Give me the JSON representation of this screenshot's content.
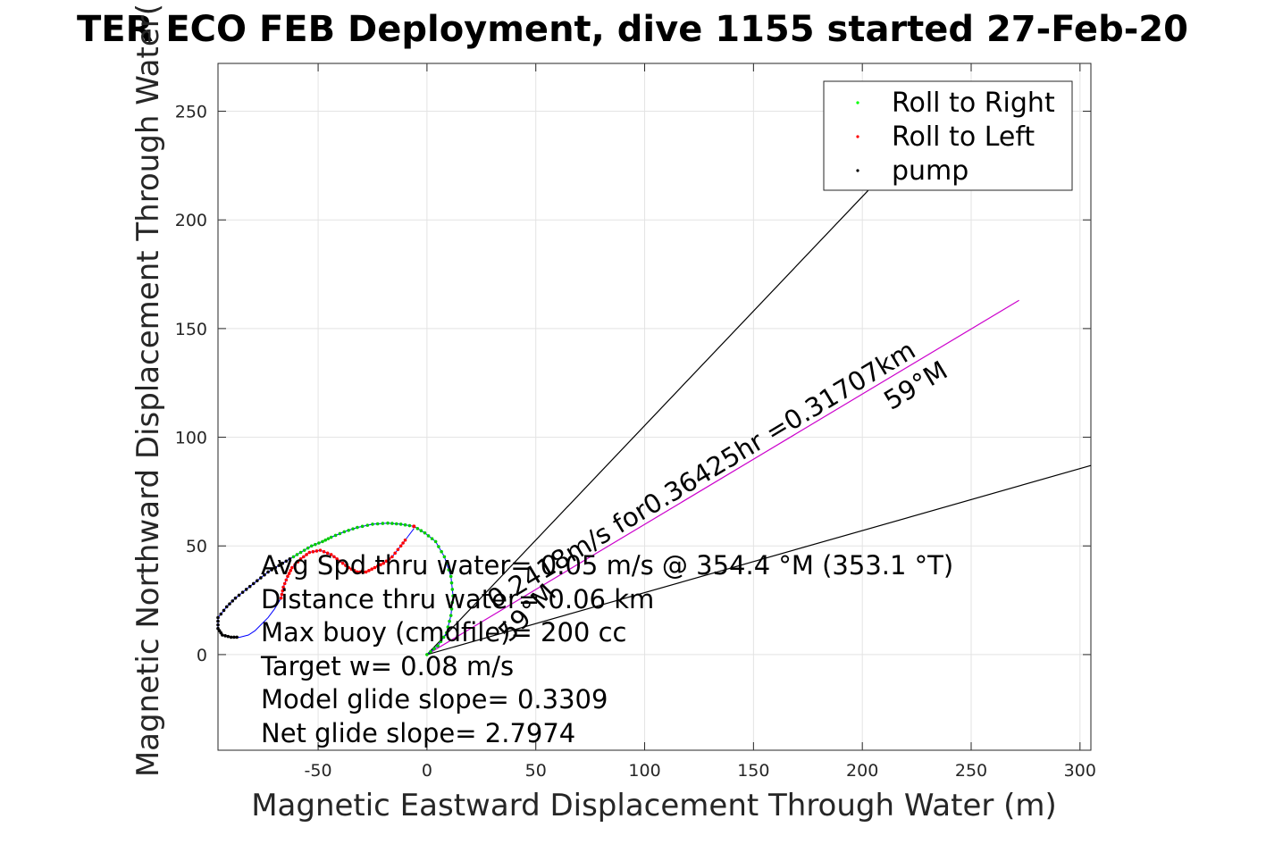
{
  "chart_data": {
    "type": "scatter",
    "title": "TER ECO FEB Deployment, dive 1155 started 27-Feb-20",
    "xlabel": "Magnetic Eastward Displacement Through Water (m)",
    "ylabel": "Magnetic Northward Displacement Through Water(",
    "xlim": [
      -96,
      305
    ],
    "ylim": [
      -44,
      272
    ],
    "xticks": [
      -50,
      0,
      50,
      100,
      150,
      200,
      250,
      300
    ],
    "yticks": [
      0,
      50,
      100,
      150,
      200,
      250
    ],
    "xtick_labels": [
      "-50",
      "0",
      "50",
      "100",
      "150",
      "200",
      "250",
      "300"
    ],
    "ytick_labels": [
      "0",
      "50",
      "100",
      "150",
      "200",
      "250"
    ],
    "grid": true,
    "legend_position": "top-right",
    "legend": [
      {
        "label": "Roll to Right",
        "color": "#00ff00"
      },
      {
        "label": "Roll to Left",
        "color": "#ff0000"
      },
      {
        "label": "pump",
        "color": "#000000"
      }
    ],
    "track": [
      [
        0,
        0
      ],
      [
        5,
        4
      ],
      [
        9,
        10
      ],
      [
        11,
        18
      ],
      [
        12,
        27
      ],
      [
        11,
        36
      ],
      [
        8,
        45
      ],
      [
        4,
        52
      ],
      [
        -1,
        56
      ],
      [
        -6,
        59
      ],
      [
        -12,
        60
      ],
      [
        -18,
        60.5
      ],
      [
        -25,
        60
      ],
      [
        -32,
        58.5
      ],
      [
        -38,
        56.5
      ],
      [
        -44,
        54
      ],
      [
        -48,
        52
      ],
      [
        -53,
        50
      ],
      [
        -58,
        47
      ],
      [
        -63,
        44
      ],
      [
        -68,
        41
      ],
      [
        -73,
        38
      ],
      [
        -78,
        34
      ],
      [
        -83,
        30
      ],
      [
        -88,
        26
      ],
      [
        -92,
        22
      ],
      [
        -96,
        17
      ],
      [
        -96,
        12
      ],
      [
        -94,
        9
      ],
      [
        -90,
        8
      ],
      [
        -86,
        8
      ],
      [
        -82,
        9
      ],
      [
        -79,
        11
      ],
      [
        -76,
        14
      ],
      [
        -73,
        17
      ],
      [
        -70,
        21
      ],
      [
        -67,
        26
      ],
      [
        -66,
        31
      ],
      [
        -64,
        36
      ],
      [
        -62,
        40
      ],
      [
        -58,
        44
      ],
      [
        -54,
        47
      ],
      [
        -49,
        48
      ],
      [
        -44,
        46
      ],
      [
        -40,
        43
      ],
      [
        -36,
        40
      ],
      [
        -32,
        38
      ],
      [
        -28,
        38
      ],
      [
        -24,
        40
      ],
      [
        -20,
        42
      ],
      [
        -16,
        45
      ],
      [
        -12,
        50
      ],
      [
        -9,
        54
      ],
      [
        -6,
        58
      ]
    ],
    "roll_right_range": [
      0,
      20
    ],
    "roll_left_range": [
      36,
      52
    ],
    "pump_range": [
      19,
      30
    ],
    "vector_lines": [
      {
        "to": [
          272,
          163
        ],
        "color": "#cc00cc"
      },
      {
        "to": [
          305,
          87
        ],
        "color": "#000000"
      },
      {
        "to": [
          205,
          216
        ],
        "color": "#000000"
      }
    ],
    "vector_label": "0.2418m/s for0.36425hr =0.31707km",
    "vector_heading": "59°M",
    "current_label": "59°M",
    "annotations": [
      "Avg Spd thru water= 0.05 m/s @ 354.4 °M (353.1 °T)",
      "Distance thru water=  0.06 km",
      "Max buoy (cmdfile)= 200 cc",
      "Target w= 0.08 m/s",
      "Model glide slope= 0.3309",
      "Net glide slope= 2.7974"
    ]
  }
}
